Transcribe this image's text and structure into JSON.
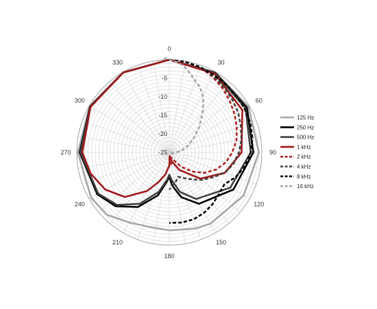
{
  "chart_data": {
    "type": "polar-line",
    "title": "",
    "angle_ticks": [
      "0",
      "30",
      "60",
      "90",
      "120",
      "150",
      "180",
      "210",
      "240",
      "270",
      "300",
      "330"
    ],
    "angle_spoke_step_deg": 10,
    "r_ticks": [
      "0",
      "-5",
      "-10",
      "-15",
      "-20",
      "-25"
    ],
    "r_range": [
      -25,
      0
    ],
    "legend_position": "right",
    "series": [
      {
        "name": "125 Hz",
        "color": "#a6a6a6",
        "dash": "solid",
        "angles": [
          0,
          30,
          60,
          90,
          120,
          150,
          160,
          165,
          180,
          195,
          210,
          225,
          240,
          270,
          300,
          330,
          360
        ],
        "values": [
          0,
          -0.1,
          -0.3,
          -0.8,
          -1.8,
          -2.8,
          -3.3,
          -3.6,
          -4.0,
          -4.2,
          -3.2,
          -1.2,
          -0.6,
          -0.3,
          -0.1,
          0,
          0
        ]
      },
      {
        "name": "250 Hz",
        "color": "#000000",
        "dash": "solid",
        "angles": [
          0,
          30,
          60,
          90,
          120,
          150,
          165,
          175,
          180,
          185,
          195,
          210,
          225,
          240,
          270,
          300,
          330,
          360
        ],
        "values": [
          0,
          -0.2,
          -0.8,
          -2.3,
          -5,
          -9,
          -12.5,
          -16,
          -18.5,
          -17,
          -13,
          -8,
          -4.5,
          -2.5,
          -0.8,
          -0.3,
          -0.1,
          0
        ]
      },
      {
        "name": "500 Hz",
        "color": "#404040",
        "dash": "solid",
        "angles": [
          0,
          30,
          60,
          90,
          120,
          150,
          165,
          175,
          180,
          185,
          195,
          210,
          225,
          240,
          270,
          300,
          330,
          360
        ],
        "values": [
          0,
          -0.3,
          -1.2,
          -3,
          -6,
          -10.5,
          -14,
          -17.5,
          -19,
          -17.5,
          -14,
          -9,
          -5,
          -2.8,
          -1,
          -0.4,
          -0.1,
          0
        ]
      },
      {
        "name": "1 kHz",
        "color": "#a01a1a",
        "dash": "solid",
        "angles": [
          0,
          30,
          60,
          90,
          110,
          130,
          150,
          165,
          175,
          180,
          190,
          200,
          210,
          225,
          240,
          255,
          270,
          300,
          330,
          360
        ],
        "values": [
          0,
          -0.5,
          -2.2,
          -5.5,
          -9,
          -14,
          -19.5,
          -22.5,
          -24,
          -21.5,
          -19,
          -16.5,
          -13,
          -8,
          -5,
          -3,
          -1.5,
          -0.4,
          -0.1,
          0
        ]
      },
      {
        "name": "2 kHz",
        "color": "#b22222",
        "dash": "dash",
        "angles": [
          0,
          10,
          20,
          30,
          40,
          50,
          60,
          70,
          80,
          90,
          100,
          110,
          120,
          130,
          140,
          150,
          160,
          170,
          180
        ],
        "values": [
          0,
          -0.2,
          -0.6,
          -1.5,
          -2.5,
          -3.6,
          -4.6,
          -5.6,
          -6.6,
          -8,
          -9.5,
          -11.5,
          -14,
          -17,
          -20,
          -22.5,
          -23.5,
          -22,
          -21
        ]
      },
      {
        "name": "4 kHz",
        "color": "#404040",
        "dash": "dash",
        "angles": [
          0,
          10,
          20,
          30,
          40,
          50,
          60,
          70,
          80,
          90,
          100,
          110,
          120,
          130,
          140,
          150,
          160,
          170,
          180
        ],
        "values": [
          0,
          -0.2,
          -0.5,
          -1.2,
          -2,
          -2.8,
          -3.5,
          -4.4,
          -5.2,
          -6.2,
          -7.4,
          -9,
          -11.5,
          -13.5,
          -15.5,
          -17,
          -18,
          -16.5,
          -15
        ]
      },
      {
        "name": "8 kHz",
        "color": "#000000",
        "dash": "dash",
        "angles": [
          0,
          10,
          20,
          30,
          40,
          50,
          60,
          70,
          80,
          90,
          100,
          110,
          120,
          130,
          140,
          150,
          160,
          170,
          180
        ],
        "values": [
          0,
          -0.2,
          -0.5,
          -0.9,
          -1.1,
          -1.3,
          -1.5,
          -1.7,
          -2.2,
          -3.0,
          -4.2,
          -5.8,
          -7.8,
          -7.5,
          -6.8,
          -6.2,
          -5.8,
          -5.8,
          -6.0
        ]
      },
      {
        "name": "16 kHz",
        "color": "#a6a6a6",
        "dash": "dash",
        "angles": [
          0,
          5,
          10,
          15,
          20,
          25,
          30,
          35,
          40,
          50,
          60,
          70,
          80,
          90,
          100,
          110,
          120,
          130,
          140,
          150
        ],
        "values": [
          0,
          -0.5,
          -1.5,
          -3,
          -4.5,
          -5.5,
          -7,
          -9,
          -11,
          -14.5,
          -17.5,
          -19.5,
          -21.5,
          -23,
          -24,
          -24.5,
          -24.8,
          -25,
          -25,
          -25
        ]
      }
    ]
  }
}
